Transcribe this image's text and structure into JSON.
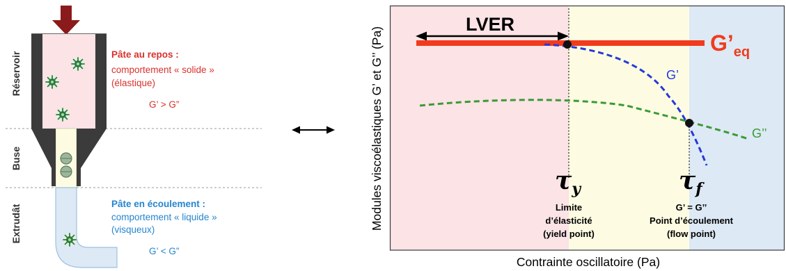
{
  "left": {
    "zones": {
      "reservoir": "Réservoir",
      "nozzle": "Buse",
      "extrudate": "Extrudât"
    },
    "rest": {
      "title": "Pâte au repos :",
      "behavior": "comportement « solide »",
      "type": "(élastique)",
      "relation": "G’ > G”"
    },
    "flow": {
      "title": "Pâte en écoulement :",
      "behavior": "comportement « liquide »",
      "type": "(visqueux)",
      "relation": "G’ < G”"
    }
  },
  "plot": {
    "y_label": "Modules viscoélastiques G’ et G’’ (Pa)",
    "x_label": "Contrainte oscillatoire (Pa)",
    "lver": "LVER",
    "geq": {
      "main": "G’",
      "sub": "eq"
    },
    "g_prime_label": "G’",
    "g_double_prime_label": "G’’",
    "yield": {
      "symbol": "τ",
      "sub": "y",
      "lines": [
        "Limite",
        "d’élasticité",
        "(yield point)"
      ]
    },
    "flow": {
      "symbol": "τ",
      "sub": "f",
      "lines": [
        "G’ = G’’",
        "Point d’écoulement",
        "(flow point)"
      ]
    }
  },
  "icons": {
    "piston": "down-arrow-icon",
    "equivalence": "double-arrow-icon",
    "particle": "particle-icon"
  },
  "colors": {
    "piston_arrow": "#8b1a1a",
    "wall": "#3b3b3b",
    "zone_rest": "#fbe3e6",
    "zone_nozzle": "#fdfce2",
    "zone_flow": "#dde9f5",
    "rest_text": "#d8312c",
    "flow_text": "#2485cf",
    "label_text": "#333333",
    "geq": "#f13b1c",
    "g_prime": "#2538dd",
    "g_double_prime": "#3a9a35",
    "marker": "#111111"
  }
}
